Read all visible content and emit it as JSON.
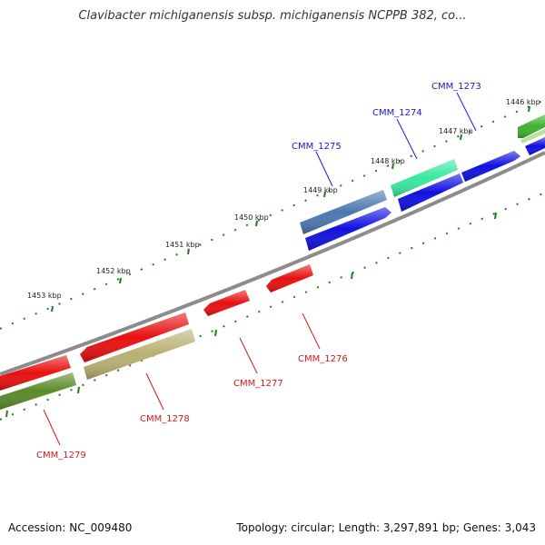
{
  "title": "Clavibacter michiganensis subsp. michiganensis NCPPB 382, co...",
  "footer": {
    "accession": "Accession: NC_009480",
    "stats": "Topology: circular; Length: 3,297,891 bp; Genes: 3,043"
  },
  "colors": {
    "backbone": "#8c8c8c",
    "forward_label": "#1a1acc",
    "reverse_label": "#d11a1a",
    "tick": "#1e7d1e",
    "cds_blue": "#1010e0",
    "cds_red": "#e81010",
    "steelblue_feature": "#4a78b0",
    "cyan_green_feature": "#38e8a0",
    "olive_feature": "#b8b070",
    "darkolive_feature": "#5a8a28",
    "green_feature": "#40b030"
  },
  "kbp_labels": [
    "1446 kbp",
    "1447 kbp",
    "1448 kbp",
    "1449 kbp",
    "1450 kbp",
    "1451 kbp",
    "1452 kbp",
    "1453 kbp"
  ],
  "gene_labels": {
    "forward": [
      "CMM_1273",
      "CMM_1274",
      "CMM_1275"
    ],
    "reverse": [
      "CMM_1276",
      "CMM_1277",
      "CMM_1278",
      "CMM_1279"
    ]
  }
}
